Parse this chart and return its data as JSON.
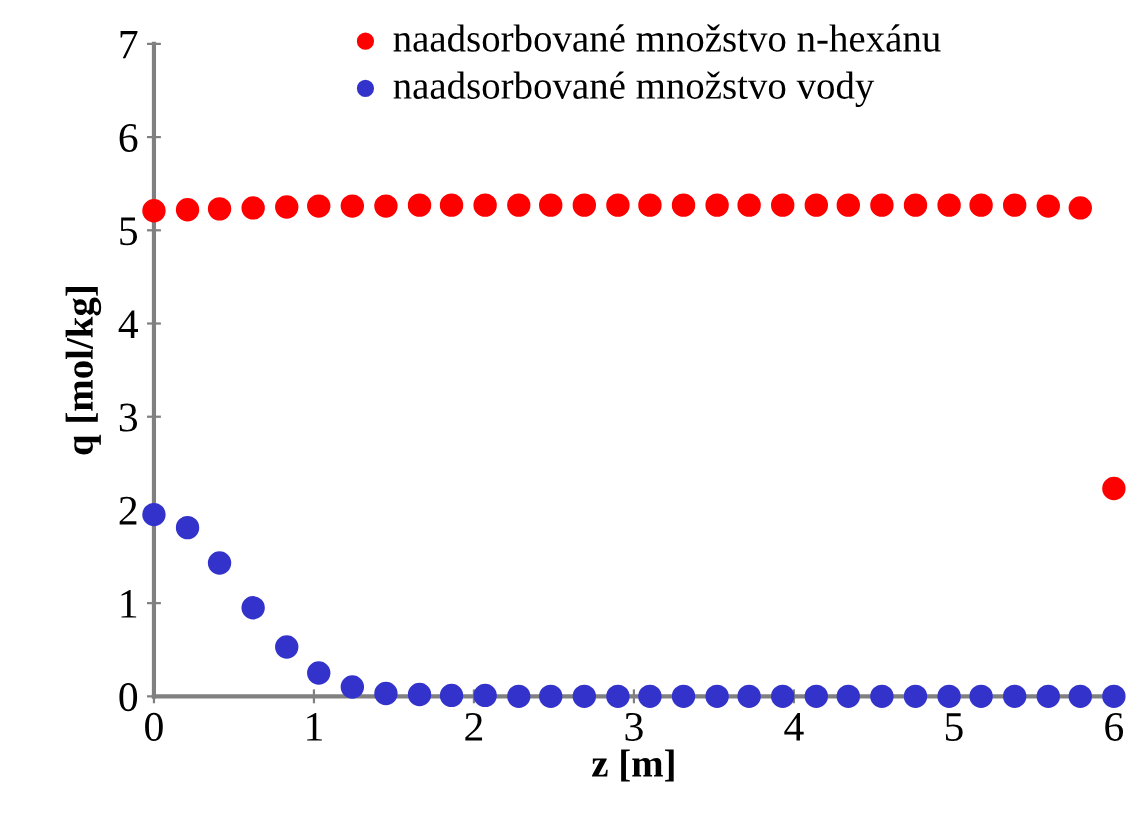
{
  "chart_data": {
    "type": "scatter",
    "xlabel": "z [m]",
    "ylabel": "q [mol/kg]",
    "x": [
      0,
      0.21,
      0.41,
      0.62,
      0.83,
      1.03,
      1.24,
      1.45,
      1.66,
      1.86,
      2.07,
      2.28,
      2.48,
      2.69,
      2.9,
      3.1,
      3.31,
      3.52,
      3.72,
      3.93,
      4.14,
      4.34,
      4.55,
      4.76,
      4.97,
      5.17,
      5.38,
      5.59,
      5.79,
      6
    ],
    "series": [
      {
        "name": "naadsorbované množstvo n-hexánu",
        "color": "#ff0000",
        "values": [
          5.21,
          5.22,
          5.23,
          5.24,
          5.25,
          5.26,
          5.26,
          5.26,
          5.27,
          5.27,
          5.27,
          5.27,
          5.27,
          5.27,
          5.27,
          5.27,
          5.27,
          5.27,
          5.27,
          5.27,
          5.27,
          5.27,
          5.27,
          5.27,
          5.27,
          5.27,
          5.27,
          5.26,
          5.24,
          2.23
        ]
      },
      {
        "name": "naadsorbované množstvo vody",
        "color": "#3333cc",
        "values": [
          1.95,
          1.81,
          1.43,
          0.95,
          0.53,
          0.25,
          0.1,
          0.03,
          0.02,
          0.01,
          0.01,
          0,
          0,
          0,
          0,
          0,
          0,
          0,
          0,
          0,
          0,
          0,
          0,
          0,
          0,
          0,
          0,
          0,
          0,
          0
        ]
      }
    ],
    "xlim": [
      0,
      6
    ],
    "xticks": [
      0,
      1,
      2,
      3,
      4,
      5,
      6
    ],
    "ylim": [
      0,
      7
    ],
    "yticks": [
      0,
      1,
      2,
      3,
      4,
      5,
      6,
      7
    ],
    "grid": false,
    "legend": "top",
    "marker": "circle"
  }
}
